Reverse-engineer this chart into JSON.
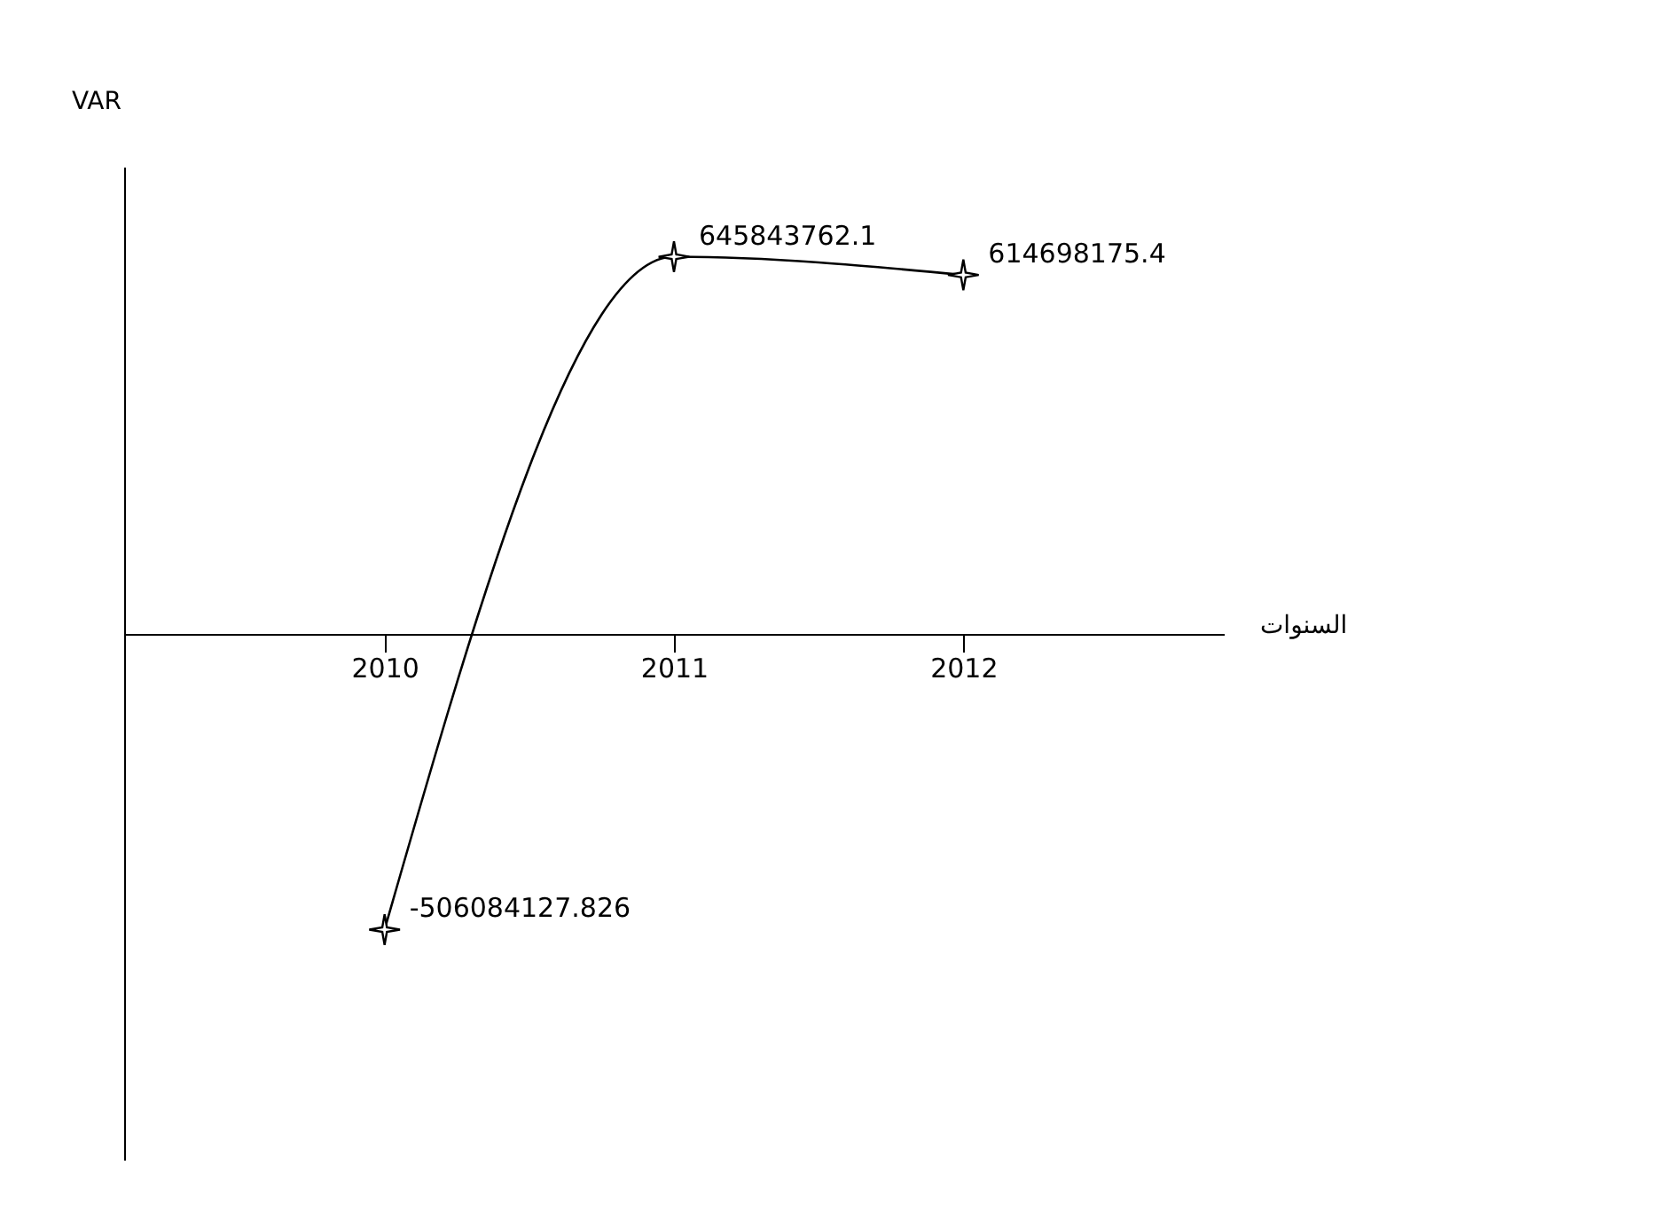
{
  "chart_data": {
    "type": "line",
    "xlabel": "السنوات",
    "ylabel": "VAR",
    "categories": [
      "2010",
      "2011",
      "2012"
    ],
    "values": [
      -506084127.826,
      645843762.1,
      614698175.4
    ],
    "color": "#000000",
    "marker": "star",
    "grid": false,
    "data_labels": true,
    "tick_labels": "x",
    "ylim": [
      -900000000,
      800000000
    ]
  }
}
